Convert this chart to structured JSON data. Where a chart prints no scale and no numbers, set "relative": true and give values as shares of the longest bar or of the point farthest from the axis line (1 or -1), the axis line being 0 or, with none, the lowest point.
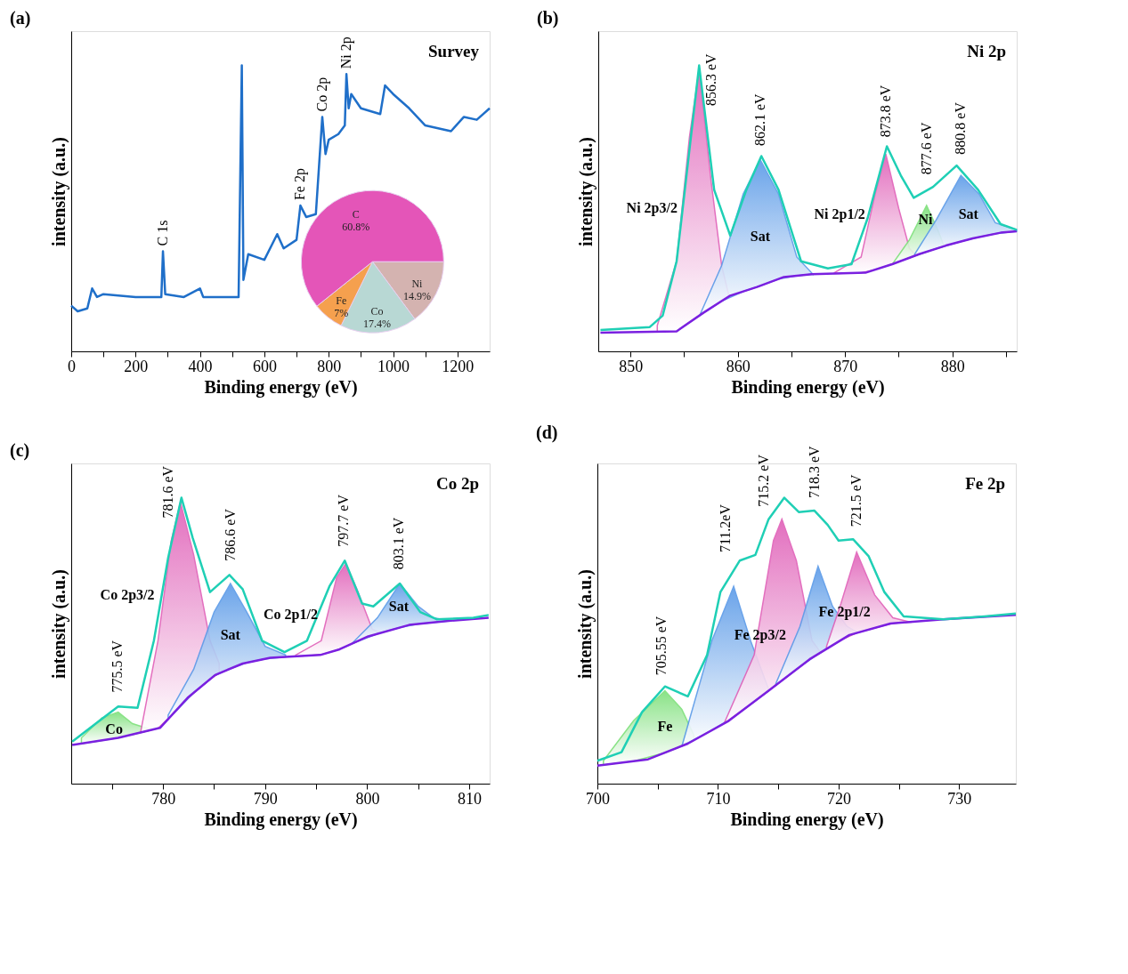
{
  "chart_data": [
    {
      "type": "line",
      "title": "(a)",
      "subtitle": "Survey",
      "xlabel": "Binding energy (eV)",
      "ylabel": "intensity (a.u.)",
      "relative": true,
      "xlim": [
        0,
        1300
      ],
      "xticks": [
        0,
        {
          "value": 100,
          "label": null
        },
        200,
        {
          "value": 300,
          "label": null
        },
        400,
        {
          "value": 500,
          "label": null
        },
        600,
        {
          "value": 700,
          "label": null
        },
        800,
        {
          "value": 900,
          "label": null
        },
        1000,
        {
          "value": 1100,
          "label": null
        },
        1200
      ],
      "series": [
        {
          "color": "#1f6fc9",
          "x": [
            0,
            20,
            50,
            65,
            80,
            100,
            200,
            280,
            285,
            292,
            350,
            400,
            410,
            520,
            530,
            535,
            550,
            600,
            640,
            660,
            700,
            712,
            730,
            760,
            780,
            790,
            800,
            830,
            850,
            855,
            862,
            870,
            900,
            960,
            975,
            1000,
            1050,
            1100,
            1180,
            1220,
            1260,
            1300
          ],
          "values": [
            0.16,
            0.14,
            0.15,
            0.22,
            0.19,
            0.2,
            0.19,
            0.19,
            0.35,
            0.2,
            0.19,
            0.22,
            0.19,
            0.19,
            1.0,
            0.25,
            0.34,
            0.32,
            0.41,
            0.36,
            0.39,
            0.51,
            0.47,
            0.48,
            0.82,
            0.69,
            0.74,
            0.76,
            0.79,
            0.97,
            0.85,
            0.9,
            0.85,
            0.83,
            0.93,
            0.9,
            0.85,
            0.79,
            0.77,
            0.82,
            0.81,
            0.85
          ]
        }
      ],
      "annotations": [
        {
          "text": "C 1s",
          "x": 285,
          "y": 0.35
        },
        {
          "text": "Fe 2p",
          "x": 712,
          "y": 0.51
        },
        {
          "text": "Co 2p",
          "x": 780,
          "y": 0.82
        },
        {
          "text": "Ni 2p",
          "x": 855,
          "y": 0.97
        }
      ]
    },
    {
      "type": "pie",
      "categories": [
        "Ni",
        "Co",
        "Fe",
        "C"
      ],
      "values": [
        14.9,
        17.4,
        7,
        60.8
      ],
      "colors": [
        "#d4b3b0",
        "#b8d8d4",
        "#f5a04e",
        "#e455b8"
      ],
      "value_labels": [
        "14.9%",
        "17.4%",
        "7%",
        "60.8%"
      ]
    },
    {
      "type": "line",
      "title": "(b)",
      "subtitle": "Ni 2p",
      "xlabel": "Binding energy (eV)",
      "ylabel": "intensity (a.u.)",
      "relative": true,
      "xlim": [
        847,
        886
      ],
      "xticks": [
        850,
        {
          "value": 855,
          "label": null
        },
        860,
        {
          "value": 865,
          "label": null
        },
        870,
        {
          "value": 875,
          "label": null
        },
        880,
        {
          "value": 885,
          "label": null
        }
      ],
      "series": [
        {
          "type": "area",
          "color": "#e060b8",
          "x": [
            852.5,
            854.3,
            855.5,
            856.4,
            857.5,
            858.5,
            859.2
          ],
          "values": [
            0.09,
            0.315,
            0.75,
            0.985,
            0.6,
            0.3,
            0.19
          ]
        },
        {
          "type": "area",
          "color": "#5a9ae8",
          "x": [
            856.5,
            858.5,
            860.5,
            862.1,
            863.8,
            865.5,
            867
          ],
          "values": [
            0.13,
            0.3,
            0.55,
            0.67,
            0.55,
            0.33,
            0.27
          ]
        },
        {
          "type": "area",
          "color": "#e060b8",
          "x": [
            869,
            871.5,
            872.8,
            873.8,
            875,
            876,
            876.5
          ],
          "values": [
            0.275,
            0.33,
            0.55,
            0.69,
            0.5,
            0.36,
            0.34
          ]
        },
        {
          "type": "area",
          "color": "#7de07a",
          "x": [
            874.5,
            876,
            877.6,
            878.7,
            879.2
          ],
          "values": [
            0.31,
            0.39,
            0.51,
            0.42,
            0.37
          ]
        },
        {
          "type": "area",
          "color": "#5a9ae8",
          "x": [
            876.5,
            878.5,
            880.8,
            882.5,
            884,
            886
          ],
          "values": [
            0.34,
            0.46,
            0.615,
            0.55,
            0.45,
            0.425
          ]
        },
        {
          "color": "#7a20e0",
          "x": [
            847.2,
            854.3,
            856.8,
            859.3,
            861.8,
            864.3,
            866.9,
            871.9,
            874.4,
            876.9,
            879.4,
            881.9,
            884.5,
            886
          ],
          "values": [
            0.065,
            0.07,
            0.135,
            0.195,
            0.225,
            0.26,
            0.27,
            0.275,
            0.305,
            0.34,
            0.37,
            0.395,
            0.415,
            0.42
          ]
        },
        {
          "color": "#1fcfb5",
          "x": [
            847.2,
            851.8,
            853,
            854.3,
            856.4,
            857.8,
            859.3,
            860.8,
            862.2,
            863.8,
            865.9,
            868.4,
            870.6,
            872.1,
            873.9,
            875.2,
            876.4,
            878.2,
            880.4,
            882.4,
            884.5,
            886
          ],
          "values": [
            0.075,
            0.085,
            0.125,
            0.315,
            1.0,
            0.565,
            0.405,
            0.565,
            0.683,
            0.565,
            0.315,
            0.29,
            0.305,
            0.465,
            0.717,
            0.615,
            0.537,
            0.575,
            0.65,
            0.565,
            0.445,
            0.425
          ]
        }
      ],
      "annotations": [
        "856.3 eV",
        "862.1 eV",
        "873.8 eV",
        "877.6 eV",
        "880.8 eV",
        "Ni 2p3/2",
        "Sat",
        "Ni 2p1/2",
        "Ni",
        "Sat"
      ]
    },
    {
      "type": "line",
      "title": "(c)",
      "subtitle": "Co 2p",
      "xlabel": "Binding energy (eV)",
      "ylabel": "intensity (a.u.)",
      "relative": true,
      "xlim": [
        771,
        812
      ],
      "xticks": [
        {
          "value": 775,
          "label": null
        },
        780,
        {
          "value": 785,
          "label": null
        },
        790,
        {
          "value": 795,
          "label": null
        },
        800,
        {
          "value": 805,
          "label": null
        },
        810
      ],
      "series": [
        {
          "type": "area",
          "color": "#7de07a",
          "x": [
            772,
            774,
            775.6,
            777,
            778.8
          ],
          "values": [
            0.16,
            0.23,
            0.25,
            0.21,
            0.19
          ]
        },
        {
          "type": "area",
          "color": "#e060b8",
          "x": [
            777.8,
            779.5,
            780.8,
            781.7,
            783,
            784.6,
            785.5
          ],
          "values": [
            0.18,
            0.5,
            0.85,
            0.985,
            0.8,
            0.5,
            0.42
          ]
        },
        {
          "type": "area",
          "color": "#5a9ae8",
          "x": [
            780.5,
            783,
            785,
            786.6,
            788.2,
            790,
            792
          ],
          "values": [
            0.24,
            0.4,
            0.6,
            0.7,
            0.6,
            0.48,
            0.45
          ]
        },
        {
          "type": "area",
          "color": "#e060b8",
          "x": [
            793,
            795.5,
            797,
            797.9,
            799,
            800.5,
            801.2
          ],
          "values": [
            0.45,
            0.5,
            0.72,
            0.77,
            0.68,
            0.54,
            0.53
          ]
        },
        {
          "type": "area",
          "color": "#5a9ae8",
          "x": [
            798.5,
            801,
            803.2,
            805,
            806.5,
            808
          ],
          "values": [
            0.49,
            0.58,
            0.7,
            0.62,
            0.58,
            0.57
          ]
        },
        {
          "color": "#7a20e0",
          "x": [
            771.1,
            775.6,
            779.7,
            782.4,
            785.1,
            787.8,
            790.5,
            795.4,
            797.3,
            800.1,
            804.1,
            808.2,
            811.9
          ],
          "values": [
            0.135,
            0.16,
            0.195,
            0.3,
            0.38,
            0.42,
            0.44,
            0.45,
            0.47,
            0.515,
            0.555,
            0.57,
            0.58
          ]
        },
        {
          "color": "#1fcfb5",
          "x": [
            771.1,
            773.4,
            775.6,
            777.5,
            779.1,
            780.5,
            781.8,
            782.9,
            784.6,
            786.5,
            787.8,
            789.7,
            791.9,
            794.1,
            796.3,
            797.8,
            799.5,
            800.6,
            803.2,
            805.2,
            806.8,
            810.4,
            811.9
          ],
          "values": [
            0.147,
            0.21,
            0.27,
            0.265,
            0.5,
            0.79,
            1.0,
            0.86,
            0.67,
            0.73,
            0.68,
            0.5,
            0.46,
            0.5,
            0.69,
            0.78,
            0.63,
            0.62,
            0.7,
            0.6,
            0.575,
            0.58,
            0.59
          ]
        }
      ],
      "annotations": [
        "775.5 eV",
        "781.6 eV",
        "786.6 eV",
        "797.7 eV",
        "803.1 eV",
        "Co 2p3/2",
        "Sat",
        "Co 2p1/2",
        "Co",
        "Sat"
      ]
    },
    {
      "type": "line",
      "title": "(d)",
      "subtitle": "Fe 2p",
      "xlabel": "Binding energy (eV)",
      "ylabel": "intensity (a.u.)",
      "relative": true,
      "xlim": [
        700,
        734.7
      ],
      "xticks": [
        700,
        {
          "value": 705,
          "label": null
        },
        710,
        {
          "value": 715,
          "label": null
        },
        720,
        {
          "value": 725,
          "label": null
        },
        730
      ],
      "series": [
        {
          "type": "area",
          "color": "#7de07a",
          "x": [
            700.5,
            703,
            705.6,
            707,
            708
          ],
          "values": [
            0.08,
            0.22,
            0.325,
            0.26,
            0.17
          ]
        },
        {
          "type": "area",
          "color": "#5a9ae8",
          "x": [
            707,
            709.5,
            711.3,
            712.7,
            714.2
          ],
          "values": [
            0.13,
            0.5,
            0.69,
            0.5,
            0.33
          ]
        },
        {
          "type": "area",
          "color": "#e060b8",
          "x": [
            710.5,
            713,
            714.6,
            715.3,
            716.5,
            717.8,
            718.5
          ],
          "values": [
            0.21,
            0.45,
            0.85,
            0.925,
            0.78,
            0.5,
            0.46
          ]
        },
        {
          "type": "area",
          "color": "#5a9ae8",
          "x": [
            714.8,
            716.8,
            718.3,
            719.5,
            720.7,
            721.5
          ],
          "values": [
            0.35,
            0.55,
            0.76,
            0.62,
            0.55,
            0.53
          ]
        },
        {
          "type": "area",
          "color": "#e060b8",
          "x": [
            719,
            720.2,
            721.5,
            723,
            724.5,
            726
          ],
          "values": [
            0.48,
            0.63,
            0.81,
            0.66,
            0.58,
            0.565
          ]
        },
        {
          "color": "#7a20e0",
          "x": [
            700,
            704.2,
            707.5,
            710.9,
            714.2,
            717.6,
            720.9,
            724.3,
            728.7,
            734.7
          ],
          "values": [
            0.063,
            0.085,
            0.14,
            0.22,
            0.325,
            0.435,
            0.52,
            0.56,
            0.575,
            0.59
          ]
        },
        {
          "color": "#1fcfb5",
          "x": [
            700,
            702,
            703.7,
            705.6,
            707.5,
            709.1,
            710.2,
            711.8,
            713.1,
            714.2,
            715.5,
            716.7,
            718,
            719.1,
            720,
            721.2,
            722.5,
            723.8,
            725.4,
            728.7,
            732.1,
            734.7
          ],
          "values": [
            0.08,
            0.11,
            0.25,
            0.34,
            0.305,
            0.45,
            0.67,
            0.78,
            0.8,
            0.925,
            1.0,
            0.95,
            0.955,
            0.905,
            0.85,
            0.855,
            0.795,
            0.67,
            0.585,
            0.575,
            0.585,
            0.595
          ]
        }
      ],
      "annotations": [
        "705.55 eV",
        "711.2eV",
        "715.2 eV",
        "718.3 eV",
        "721.5 eV",
        "Fe",
        "Fe 2p3/2",
        "Fe 2p1/2"
      ]
    }
  ]
}
